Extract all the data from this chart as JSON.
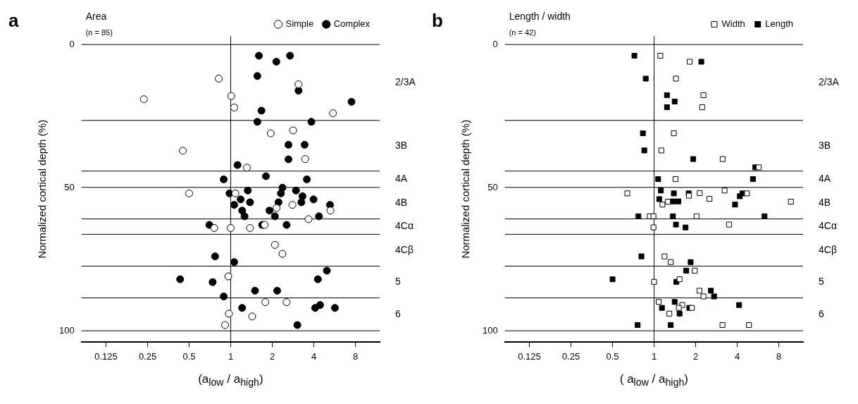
{
  "chart_data": [
    {
      "type": "scatter",
      "title": "Area",
      "subtitle": "(n = 85)",
      "annotations": [
        "a",
        "2/3A",
        "3B",
        "4A",
        "4B",
        "4Cα",
        "4Cβ",
        "5",
        "6"
      ],
      "xlabel": "(a$_{low}$ / a$_{high}$)",
      "ylabel": "Normalized cortical depth (%)",
      "marker": "circle",
      "legend": "top right",
      "grid": false,
      "log": "x",
      "xlim": [
        0.083,
        12
      ],
      "xticks": [
        0.125,
        0.25,
        0.5,
        1,
        2,
        4,
        8
      ],
      "ylim": [
        104,
        -3
      ],
      "yticks": [
        0,
        50,
        100
      ],
      "ref_lines": [
        {
          "axis": "x",
          "value": 1
        },
        {
          "axis": "y",
          "value": 0
        },
        {
          "axis": "y",
          "value": 26.5
        },
        {
          "axis": "y",
          "value": 44.2
        },
        {
          "axis": "y",
          "value": 49.9
        },
        {
          "axis": "y",
          "value": 60.9
        },
        {
          "axis": "y",
          "value": 66.3
        },
        {
          "axis": "y",
          "value": 77.4
        },
        {
          "axis": "y",
          "value": 88.5
        },
        {
          "axis": "y",
          "value": 100
        }
      ],
      "series": [
        {
          "name": "Simple",
          "color": "#ffffff",
          "x": [
            0.82,
            3.1,
            1.01,
            0.235,
            1.06,
            5.5,
            1.95,
            2.83,
            0.45,
            3.46,
            1.31,
            0.5,
            1.08,
            2.15,
            2.8,
            5.28,
            3.66,
            0.76,
            1.0,
            1.38,
            1.76,
            2.09,
            2.37,
            0.96,
            1.78,
            2.54,
            0.97,
            1.43,
            0.91
          ],
          "values": [
            11.9,
            13.9,
            18.0,
            19.1,
            22.0,
            24.0,
            31.0,
            30.0,
            37.1,
            40.0,
            43.0,
            52.0,
            52.0,
            57.1,
            56.0,
            58.0,
            61.0,
            64.1,
            64.1,
            64.1,
            63.0,
            70.0,
            73.1,
            81.0,
            90.0,
            90.0,
            94.0,
            95.0,
            98.0
          ]
        },
        {
          "name": "Complex",
          "color": "#000000",
          "x": [
            1.6,
            2.69,
            2.14,
            1.56,
            3.1,
            7.5,
            1.67,
            1.56,
            3.84,
            2.62,
            3.43,
            2.62,
            1.12,
            0.89,
            1.8,
            3.56,
            2.37,
            1.33,
            2.97,
            0.98,
            2.31,
            3.31,
            1.18,
            3.98,
            1.38,
            2.22,
            3.25,
            1.06,
            5.24,
            1.21,
            1.91,
            1.26,
            2.09,
            4.36,
            0.7,
            1.69,
            2.54,
            0.77,
            1.06,
            4.97,
            0.43,
            4.28,
            0.74,
            1.5,
            2.17,
            0.89,
            1.21,
            4.09,
            4.44,
            5.69,
            3.04
          ],
          "values": [
            3.9,
            3.9,
            6.0,
            11.0,
            16.1,
            20.0,
            23.1,
            27.0,
            27.0,
            35.0,
            35.0,
            40.1,
            42.1,
            47.1,
            46.0,
            47.1,
            50.0,
            51.0,
            51.0,
            52.0,
            52.0,
            53.0,
            54.1,
            54.1,
            55.1,
            55.1,
            55.1,
            56.0,
            56.0,
            58.0,
            58.0,
            60.0,
            60.0,
            60.0,
            63.0,
            63.0,
            63.0,
            74.0,
            76.0,
            79.0,
            82.0,
            82.0,
            83.0,
            86.0,
            86.0,
            88.0,
            92.0,
            92.0,
            91.0,
            92.0,
            98.0
          ]
        }
      ]
    },
    {
      "type": "scatter",
      "title": "Length / width",
      "subtitle": "(n = 42)",
      "annotations": [
        "b",
        "2/3A",
        "3B",
        "4A",
        "4B",
        "4Cα",
        "4Cβ",
        "5",
        "6"
      ],
      "xlabel": "( a$_{low}$ / a$_{high}$)",
      "ylabel": "Normalized cortical depth (%)",
      "marker": "square",
      "legend": "top right",
      "grid": false,
      "log": "x",
      "xlim": [
        0.083,
        12
      ],
      "xticks": [
        0.125,
        0.25,
        0.5,
        1,
        2,
        4,
        8
      ],
      "ylim": [
        104,
        -3
      ],
      "yticks": [
        0,
        50,
        100
      ],
      "ref_lines": [
        {
          "axis": "x",
          "value": 1
        },
        {
          "axis": "y",
          "value": 0
        },
        {
          "axis": "y",
          "value": 26.5
        },
        {
          "axis": "y",
          "value": 44.2
        },
        {
          "axis": "y",
          "value": 49.9
        },
        {
          "axis": "y",
          "value": 60.9
        },
        {
          "axis": "y",
          "value": 66.3
        },
        {
          "axis": "y",
          "value": 77.4
        },
        {
          "axis": "y",
          "value": 88.5
        },
        {
          "axis": "y",
          "value": 100
        }
      ],
      "series": [
        {
          "name": "Width",
          "color": "#ffffff",
          "x": [
            1.11,
            1.81,
            1.44,
            2.28,
            2.23,
            1.39,
            1.13,
            3.14,
            5.73,
            1.43,
            0.64,
            2.14,
            3.24,
            4.71,
            1.79,
            2.52,
            1.26,
            1.15,
            9.8,
            0.93,
            0.99,
            2.03,
            3.49,
            0.99,
            1.19,
            1.32,
            1.97,
            1.53,
            1.0,
            2.13,
            2.28,
            1.08,
            1.6,
            1.51,
            1.88,
            1.29,
            3.13,
            4.87
          ],
          "values": [
            3.9,
            6.0,
            11.9,
            17.7,
            21.9,
            31.0,
            37.0,
            40.0,
            42.9,
            47.0,
            52.0,
            51.9,
            51.0,
            52.0,
            52.8,
            53.9,
            54.9,
            55.9,
            54.9,
            60.0,
            60.0,
            60.0,
            62.9,
            63.9,
            74.0,
            76.0,
            79.0,
            82.0,
            82.9,
            86.0,
            88.0,
            89.9,
            91.0,
            92.0,
            92.0,
            94.0,
            98.0,
            98.0
          ]
        },
        {
          "name": "Length",
          "color": "#000000",
          "x": [
            0.72,
            2.2,
            0.87,
            1.24,
            1.41,
            1.24,
            0.83,
            0.85,
            1.92,
            5.41,
            1.07,
            5.2,
            1.12,
            1.39,
            1.78,
            4.18,
            4.37,
            1.09,
            1.37,
            1.5,
            3.86,
            0.77,
            1.37,
            6.31,
            1.44,
            1.69,
            0.81,
            1.84,
            1.71,
            0.5,
            1.45,
            2.58,
            2.72,
            1.41,
            1.14,
            1.8,
            1.53,
            4.13,
            0.76,
            1.32
          ],
          "values": [
            3.9,
            6.0,
            11.9,
            17.7,
            19.9,
            21.9,
            31.0,
            37.0,
            40.0,
            42.9,
            47.0,
            47.0,
            51.0,
            52.0,
            52.0,
            53.0,
            52.0,
            54.0,
            54.8,
            54.8,
            55.9,
            60.0,
            60.0,
            60.0,
            62.9,
            63.9,
            74.0,
            76.0,
            79.0,
            82.0,
            82.9,
            86.0,
            88.0,
            89.9,
            92.0,
            92.0,
            94.0,
            91.0,
            98.0,
            98.0
          ]
        }
      ]
    }
  ]
}
